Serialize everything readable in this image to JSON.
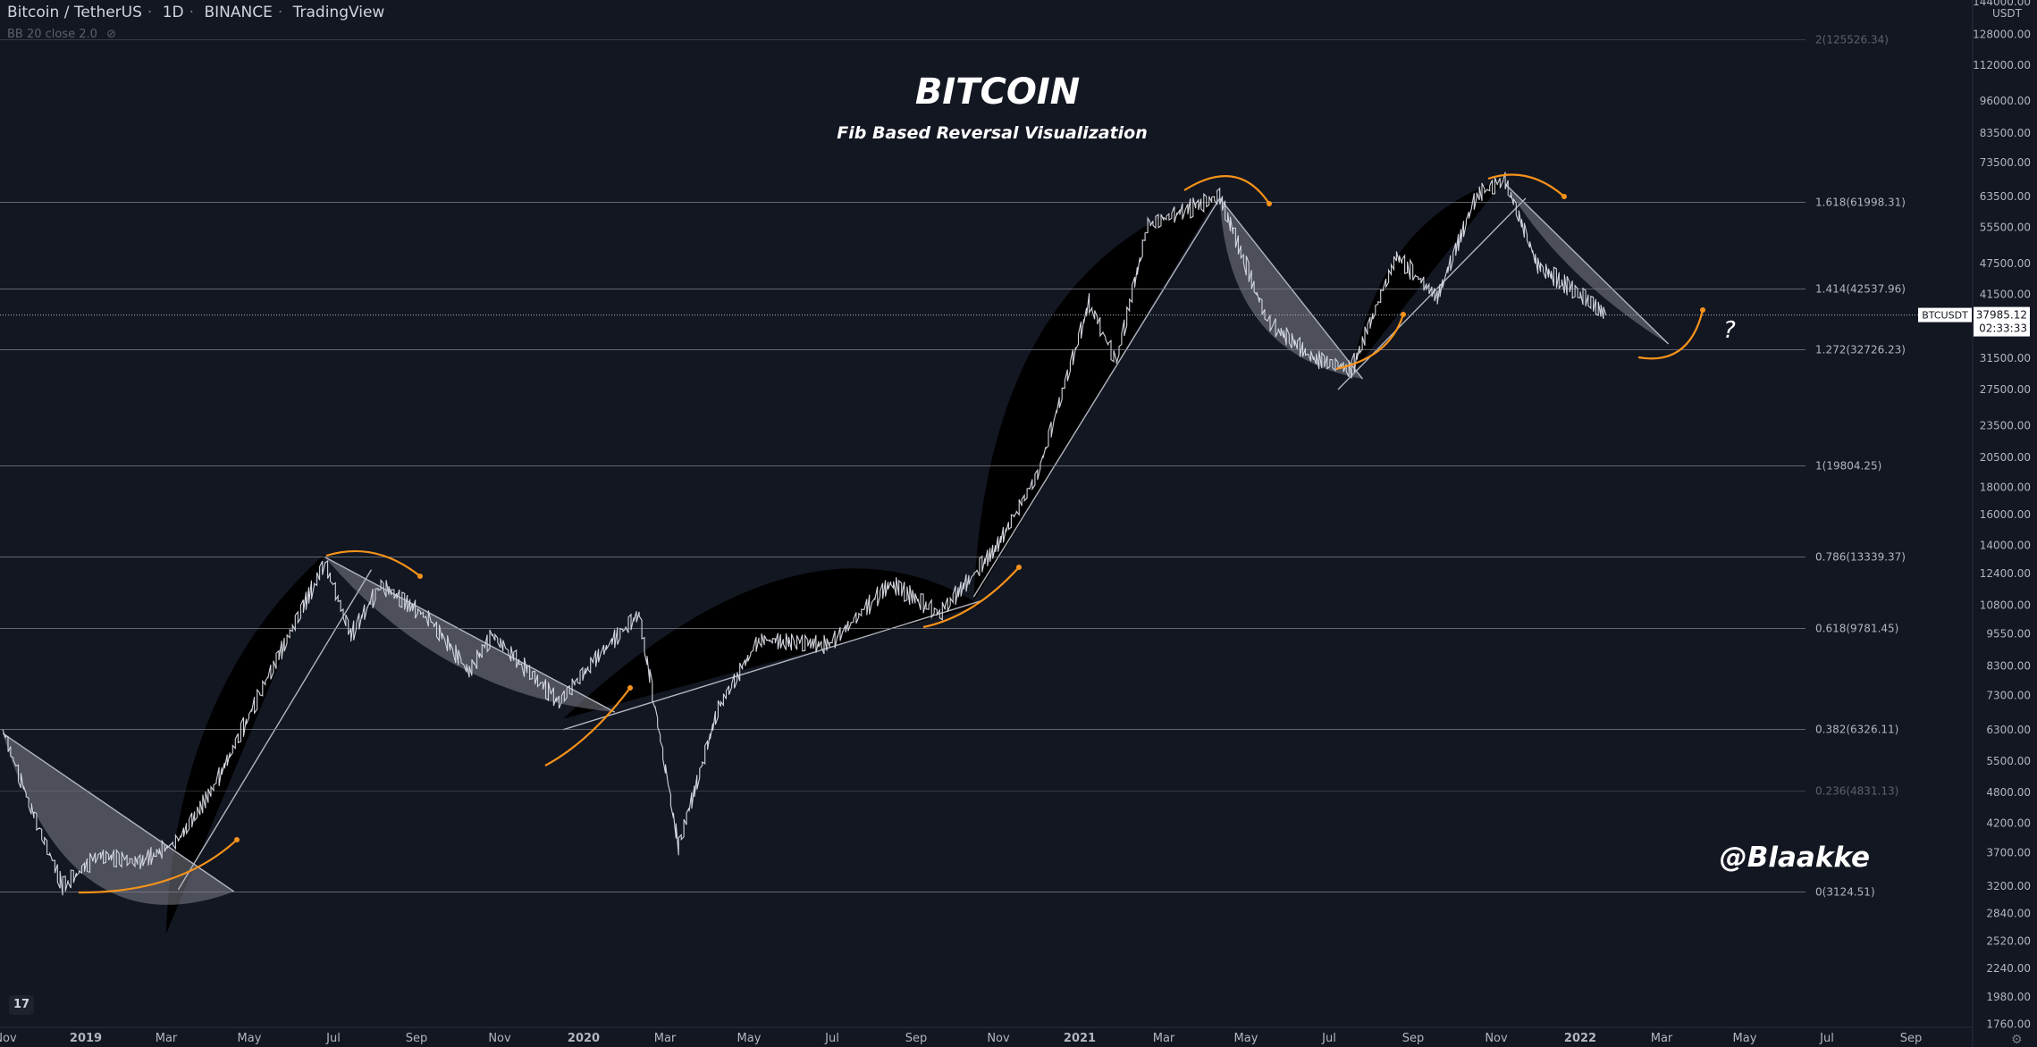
{
  "header": {
    "symbol": "Bitcoin / TetherUS",
    "interval": "1D",
    "exchange": "BINANCE",
    "platform": "TradingView",
    "indicator": "BB 20 close 2.0"
  },
  "tv_logo_text": "17",
  "price_axis": {
    "unit": "USDT",
    "top_label": "144000.00",
    "labels": [
      "128000.00",
      "112000.00",
      "96000.00",
      "83500.00",
      "73500.00",
      "63500.00",
      "55500.00",
      "47500.00",
      "41500.00",
      "31500.00",
      "27500.00",
      "23500.00",
      "20500.00",
      "18000.00",
      "16000.00",
      "14000.00",
      "12400.00",
      "10800.00",
      "9550.00",
      "8300.00",
      "7300.00",
      "6300.00",
      "5500.00",
      "4800.00",
      "4200.00",
      "3700.00",
      "3200.00",
      "2840.00",
      "2520.00",
      "2240.00",
      "1980.00",
      "1760.00"
    ],
    "last_price": "37985.12",
    "countdown": "02:33:33",
    "ticker_tag": "BTCUSDT"
  },
  "time_axis": {
    "labels": [
      "Nov",
      "2019",
      "Mar",
      "May",
      "Jul",
      "Sep",
      "Nov",
      "2020",
      "Mar",
      "May",
      "Jul",
      "Sep",
      "Nov",
      "2021",
      "Mar",
      "May",
      "Jul",
      "Sep",
      "Nov",
      "2022",
      "Mar",
      "May",
      "Jul",
      "Sep"
    ]
  },
  "annotations": {
    "title": "BITCOIN",
    "subtitle": "Fib Based Reversal Visualization",
    "author": "@Blaakke",
    "question": "?"
  },
  "colors": {
    "background": "#131722",
    "fib_line": "#787b86",
    "arrow": "#f7931a",
    "candle": "#d1d4dc",
    "wedge": "#7e808a"
  },
  "chart_data": {
    "type": "line",
    "scale": "log",
    "x_range": [
      "2018-11-01",
      "2022-09-30"
    ],
    "y_range": [
      1760,
      144000
    ],
    "fib_levels": [
      {
        "label": "2(125526.34)",
        "value": 125526.34
      },
      {
        "label": "1.618(61998.31)",
        "value": 61998.31
      },
      {
        "label": "1.414(42537.96)",
        "value": 42537.96
      },
      {
        "label": "1.272(32726.23)",
        "value": 32726.23
      },
      {
        "label": "1(19804.25)",
        "value": 19804.25
      },
      {
        "label": "0.786(13339.37)",
        "value": 13339.37
      },
      {
        "label": "0.618(9781.45)",
        "value": 9781.45
      },
      {
        "label": "0.382(6326.11)",
        "value": 6326.11
      },
      {
        "label": "0.236(4831.13)",
        "value": 4831.13
      },
      {
        "label": "0(3124.51)",
        "value": 3124.51
      }
    ],
    "series": [
      {
        "values": [
          {
            "x": "2018-11-01",
            "y": 6300
          },
          {
            "x": "2018-11-20",
            "y": 4600
          },
          {
            "x": "2018-12-15",
            "y": 3200
          },
          {
            "x": "2019-01-10",
            "y": 3650
          },
          {
            "x": "2019-02-10",
            "y": 3550
          },
          {
            "x": "2019-03-10",
            "y": 3900
          },
          {
            "x": "2019-04-05",
            "y": 4900
          },
          {
            "x": "2019-05-15",
            "y": 7900
          },
          {
            "x": "2019-06-26",
            "y": 13000
          },
          {
            "x": "2019-07-15",
            "y": 9500
          },
          {
            "x": "2019-08-06",
            "y": 11800
          },
          {
            "x": "2019-09-10",
            "y": 10200
          },
          {
            "x": "2019-10-10",
            "y": 8100
          },
          {
            "x": "2019-10-27",
            "y": 9500
          },
          {
            "x": "2019-12-15",
            "y": 7100
          },
          {
            "x": "2020-01-15",
            "y": 8800
          },
          {
            "x": "2020-02-12",
            "y": 10400
          },
          {
            "x": "2020-03-12",
            "y": 3800
          },
          {
            "x": "2020-04-10",
            "y": 6900
          },
          {
            "x": "2020-05-10",
            "y": 9300
          },
          {
            "x": "2020-07-01",
            "y": 9100
          },
          {
            "x": "2020-08-15",
            "y": 11900
          },
          {
            "x": "2020-09-20",
            "y": 10400
          },
          {
            "x": "2020-10-31",
            "y": 13800
          },
          {
            "x": "2020-12-01",
            "y": 19000
          },
          {
            "x": "2021-01-08",
            "y": 40000
          },
          {
            "x": "2021-01-28",
            "y": 31000
          },
          {
            "x": "2021-02-20",
            "y": 56000
          },
          {
            "x": "2021-04-14",
            "y": 63500
          },
          {
            "x": "2021-05-19",
            "y": 37000
          },
          {
            "x": "2021-06-22",
            "y": 31500
          },
          {
            "x": "2021-07-20",
            "y": 30000
          },
          {
            "x": "2021-08-22",
            "y": 49000
          },
          {
            "x": "2021-09-21",
            "y": 41000
          },
          {
            "x": "2021-10-20",
            "y": 64000
          },
          {
            "x": "2021-11-10",
            "y": 68000
          },
          {
            "x": "2021-12-04",
            "y": 47000
          },
          {
            "x": "2022-01-10",
            "y": 40500
          },
          {
            "x": "2022-01-23",
            "y": 37985
          }
        ]
      }
    ]
  }
}
